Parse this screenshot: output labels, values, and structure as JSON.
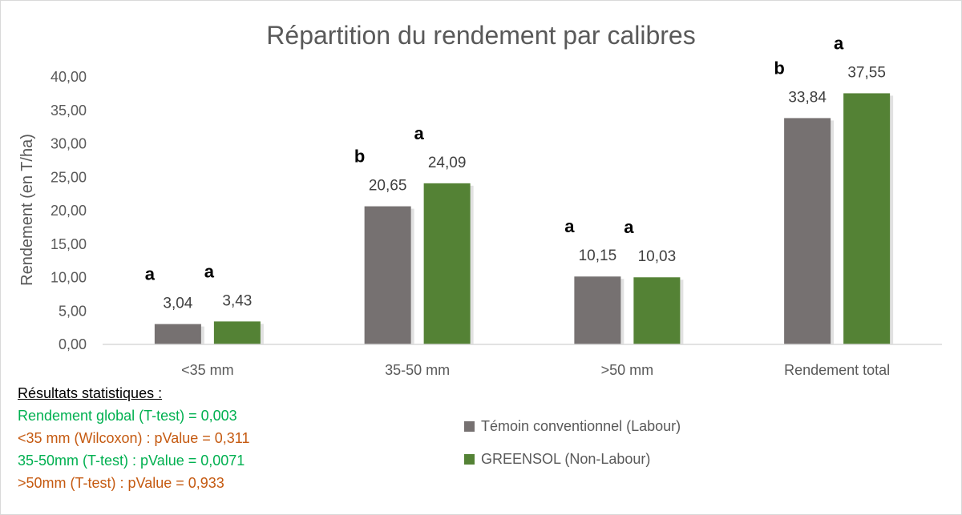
{
  "chart_data": {
    "type": "bar",
    "title": "Répartition du rendement par calibres",
    "xlabel": "",
    "ylabel": "Rendement (en T/ha)",
    "ylim": [
      0,
      40
    ],
    "yticks": [
      "0,00",
      "5,00",
      "10,00",
      "15,00",
      "20,00",
      "25,00",
      "30,00",
      "35,00",
      "40,00"
    ],
    "categories": [
      "<35 mm",
      "35-50 mm",
      ">50 mm",
      "Rendement total"
    ],
    "series": [
      {
        "name": "Témoin conventionnel (Labour)",
        "color": "#767171",
        "values": [
          3.04,
          20.65,
          10.15,
          33.84
        ],
        "labels": [
          "3,04",
          "20,65",
          "10,15",
          "33,84"
        ],
        "significance": [
          "a",
          "b",
          "a",
          "b"
        ]
      },
      {
        "name": "GREENSOL (Non-Labour)",
        "color": "#548235",
        "values": [
          3.43,
          24.09,
          10.03,
          37.55
        ],
        "labels": [
          "3,43",
          "24,09",
          "10,03",
          "37,55"
        ],
        "significance": [
          "a",
          "a",
          "a",
          "a"
        ]
      }
    ],
    "grid": false,
    "legend": "bottom-right"
  },
  "stats": {
    "heading": "Résultats statistiques :",
    "lines": [
      {
        "text": "Rendement global (T-test) = 0,003",
        "color": "#00b050"
      },
      {
        "text": "<35 mm (Wilcoxon) : pValue = 0,311",
        "color": "#c55a11"
      },
      {
        "text": "35-50mm (T-test) : pValue = 0,0071",
        "color": "#00b050"
      },
      {
        "text": ">50mm (T-test) : pValue = 0,933",
        "color": "#c55a11"
      }
    ]
  }
}
